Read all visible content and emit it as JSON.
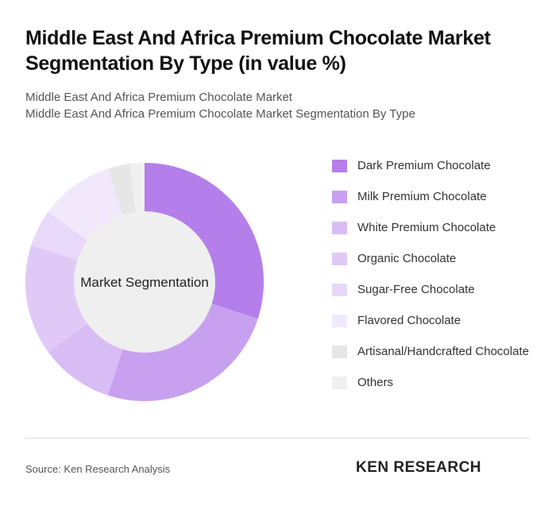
{
  "chart_data": {
    "type": "donut",
    "title": "Middle East And Africa Premium Chocolate Market Segmentation By Type (in value %)",
    "subtitle": [
      "Middle East And Africa Premium Chocolate Market",
      "Middle East And Africa Premium Chocolate Market Segmentation By Type"
    ],
    "center_label": "Market Segmentation",
    "categories": [
      "Dark Premium Chocolate",
      "Milk Premium Chocolate",
      "White Premium Chocolate",
      "Organic Chocolate",
      "Sugar-Free Chocolate",
      "Flavored Chocolate",
      "Artisanal/Handcrafted Chocolate",
      "Others"
    ],
    "values": [
      30,
      25,
      10,
      15,
      5,
      10,
      3,
      2
    ],
    "colors": [
      "#b47fea",
      "#c8a0f0",
      "#d8bdf5",
      "#e0c9f7",
      "#e8d8f9",
      "#f1e9fb",
      "#e6e6e6",
      "#f0f0f0"
    ],
    "source": "Source: Ken Research Analysis",
    "logo": "KEN RESEARCH"
  }
}
